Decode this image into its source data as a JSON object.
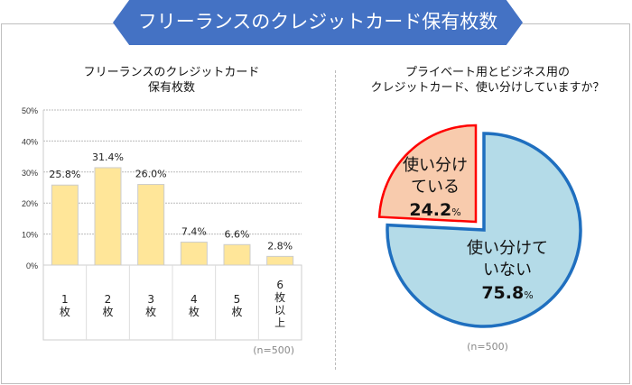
{
  "banner_title": "フリーランスのクレジットカード保有枚数",
  "chart_data": [
    {
      "type": "bar",
      "title_lines": [
        "フリーランスのクレジットカード",
        "保有枚数"
      ],
      "categories": [
        [
          "1",
          "枚"
        ],
        [
          "2",
          "枚"
        ],
        [
          "3",
          "枚"
        ],
        [
          "4",
          "枚"
        ],
        [
          "5",
          "枚"
        ],
        [
          "6",
          "枚",
          "以",
          "上"
        ]
      ],
      "values": [
        25.8,
        31.4,
        26.0,
        7.4,
        6.6,
        2.8
      ],
      "data_labels": [
        "25.8%",
        "31.4%",
        "26.0%",
        "7.4%",
        "6.6%",
        "2.8%"
      ],
      "ylim": [
        0,
        50
      ],
      "yticks": [
        "0%",
        "10%",
        "20%",
        "30%",
        "40%",
        "50%"
      ],
      "grid": true,
      "bar_color": "#ffe699",
      "note": "(n=500)"
    },
    {
      "type": "pie",
      "title_lines": [
        "プライベート用とビジネス用の",
        "クレジットカード、使い分けしていますか？"
      ],
      "slices": [
        {
          "label_lines": [
            "使い分けて",
            "いない"
          ],
          "value": 75.8,
          "value_label": "75.8",
          "unit": "%",
          "fill": "#b4dbe8",
          "stroke": "#1f6fbf"
        },
        {
          "label_lines": [
            "使い分け",
            "ている"
          ],
          "value": 24.2,
          "value_label": "24.2",
          "unit": "%",
          "fill": "#f8cbad",
          "stroke": "#ff0000",
          "exploded": true
        }
      ],
      "note": "(n=500)"
    }
  ]
}
